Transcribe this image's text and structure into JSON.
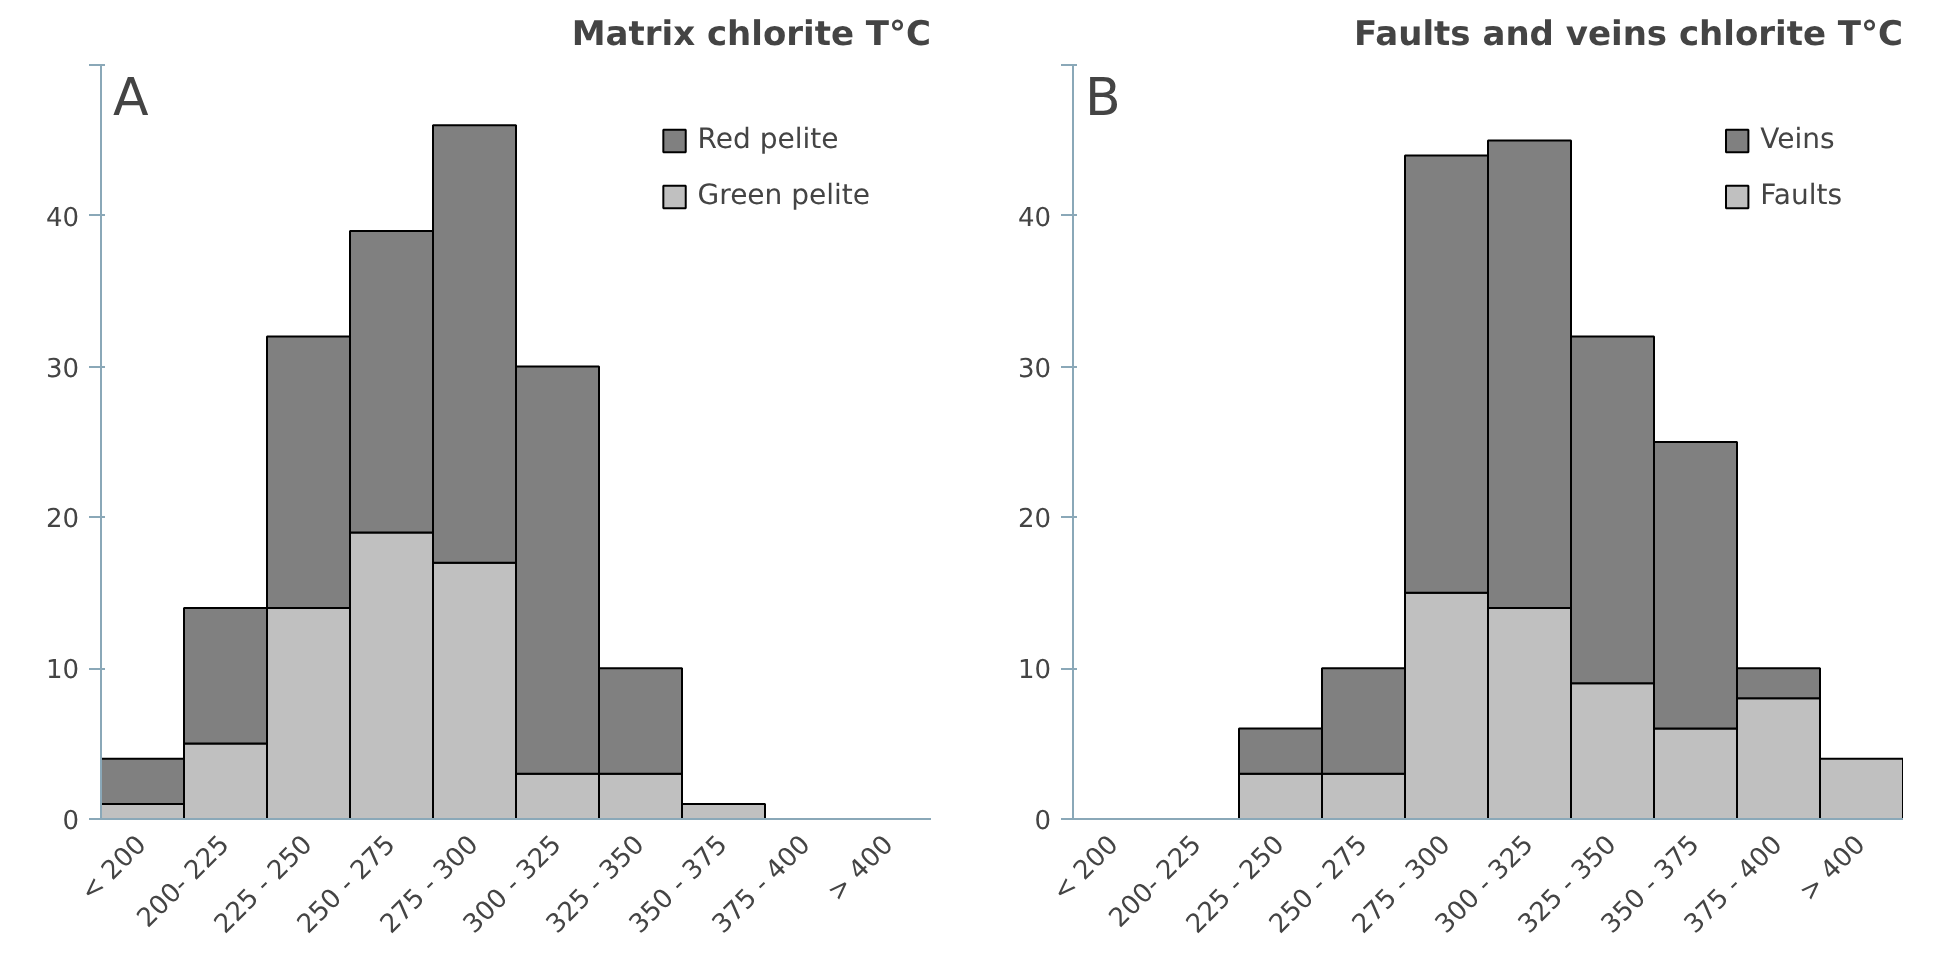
{
  "chart_data": [
    {
      "type": "bar",
      "title": "Matrix chlorite T°C",
      "annotations": [
        "A"
      ],
      "stacked": true,
      "legend": "top right",
      "categories": [
        "< 200",
        "200- 225",
        "225 - 250",
        "250 - 275",
        "275 - 300",
        "300 - 325",
        "325 - 350",
        "350 - 375",
        "375 - 400",
        "> 400"
      ],
      "series": [
        {
          "name": "Green pelite",
          "color": "#c0c0c0",
          "values": [
            1,
            5,
            14,
            19,
            17,
            3,
            3,
            1,
            0,
            0
          ]
        },
        {
          "name": "Red pelite",
          "color": "#808080",
          "values": [
            3,
            9,
            18,
            20,
            29,
            27,
            7,
            0,
            0,
            0
          ]
        }
      ],
      "ylim": [
        0,
        50
      ],
      "yticks": [
        0,
        10,
        20,
        30,
        40,
        {
          "value": 50,
          "label": null
        }
      ]
    },
    {
      "type": "bar",
      "title": "Faults and veins chlorite T°C",
      "annotations": [
        "B"
      ],
      "stacked": true,
      "legend": "top right",
      "categories": [
        "< 200",
        "200- 225",
        "225 - 250",
        "250 - 275",
        "275 - 300",
        "300 - 325",
        "325 - 350",
        "350 - 375",
        "375 - 400",
        "> 400"
      ],
      "series": [
        {
          "name": "Faults",
          "color": "#c0c0c0",
          "values": [
            0,
            0,
            3,
            3,
            15,
            14,
            9,
            6,
            8,
            4
          ]
        },
        {
          "name": "Veins",
          "color": "#808080",
          "values": [
            0,
            0,
            3,
            7,
            29,
            31,
            23,
            19,
            2,
            0
          ]
        }
      ],
      "ylim": [
        0,
        50
      ],
      "yticks": [
        0,
        10,
        20,
        30,
        40,
        {
          "value": 50,
          "label": null
        }
      ]
    }
  ]
}
